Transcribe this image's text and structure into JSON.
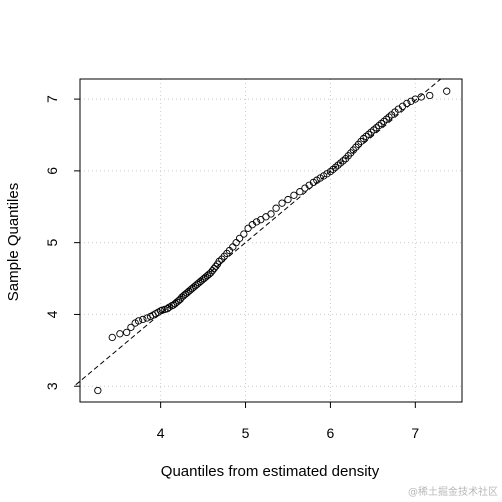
{
  "chart_data": {
    "type": "scatter",
    "title": "",
    "xlabel": "Quantiles from estimated density",
    "ylabel": "Sample Quantiles",
    "xlim": [
      3.05,
      7.55
    ],
    "ylim": [
      2.78,
      7.28
    ],
    "xticks": [
      4,
      5,
      6,
      7
    ],
    "yticks": [
      3,
      4,
      5,
      6,
      7
    ],
    "grid": true,
    "grid_color": "#cccccc",
    "point_color": "#000000",
    "reference_line": {
      "style": "dashed",
      "from": [
        3.0,
        3.02
      ],
      "to": [
        7.3,
        7.28
      ]
    },
    "series": [
      {
        "x": [
          3.26,
          3.43,
          3.52,
          3.6,
          3.65,
          3.7,
          3.74,
          3.79,
          3.84,
          3.88,
          3.91,
          3.94,
          3.97,
          4.0,
          4.02,
          4.05,
          4.08,
          4.1,
          4.13,
          4.15,
          4.17,
          4.19,
          4.21,
          4.23,
          4.25,
          4.27,
          4.29,
          4.31,
          4.33,
          4.35,
          4.37,
          4.39,
          4.41,
          4.43,
          4.45,
          4.47,
          4.49,
          4.51,
          4.53,
          4.55,
          4.57,
          4.59,
          4.61,
          4.63,
          4.65,
          4.67,
          4.69,
          4.72,
          4.75,
          4.78,
          4.81,
          4.85,
          4.89,
          4.93,
          4.98,
          5.03,
          5.08,
          5.13,
          5.18,
          5.24,
          5.3,
          5.36,
          5.43,
          5.5,
          5.57,
          5.64,
          5.7,
          5.75,
          5.8,
          5.84,
          5.88,
          5.92,
          5.96,
          6.0,
          6.03,
          6.06,
          6.09,
          6.12,
          6.15,
          6.18,
          6.21,
          6.24,
          6.27,
          6.3,
          6.33,
          6.36,
          6.39,
          6.42,
          6.45,
          6.48,
          6.51,
          6.54,
          6.57,
          6.6,
          6.63,
          6.66,
          6.69,
          6.72,
          6.76,
          6.8,
          6.85,
          6.9,
          6.95,
          7.0,
          7.07,
          7.17,
          7.37
        ],
        "y": [
          2.94,
          3.68,
          3.73,
          3.75,
          3.82,
          3.88,
          3.91,
          3.93,
          3.95,
          3.97,
          3.99,
          4.01,
          4.03,
          4.05,
          4.06,
          4.07,
          4.08,
          4.1,
          4.12,
          4.13,
          4.15,
          4.17,
          4.19,
          4.21,
          4.24,
          4.26,
          4.28,
          4.3,
          4.32,
          4.34,
          4.36,
          4.38,
          4.4,
          4.42,
          4.44,
          4.46,
          4.48,
          4.5,
          4.52,
          4.54,
          4.56,
          4.58,
          4.61,
          4.64,
          4.67,
          4.7,
          4.74,
          4.77,
          4.81,
          4.85,
          4.89,
          4.94,
          5.0,
          5.06,
          5.12,
          5.2,
          5.25,
          5.29,
          5.32,
          5.36,
          5.4,
          5.48,
          5.55,
          5.6,
          5.66,
          5.71,
          5.76,
          5.8,
          5.84,
          5.87,
          5.9,
          5.93,
          5.96,
          5.99,
          6.02,
          6.05,
          6.08,
          6.11,
          6.14,
          6.17,
          6.21,
          6.25,
          6.29,
          6.33,
          6.37,
          6.41,
          6.45,
          6.48,
          6.51,
          6.54,
          6.57,
          6.6,
          6.63,
          6.66,
          6.69,
          6.72,
          6.75,
          6.78,
          6.82,
          6.86,
          6.9,
          6.94,
          6.97,
          7.0,
          7.03,
          7.05,
          7.11
        ]
      }
    ]
  },
  "watermark": "@稀土掘金技术社区"
}
